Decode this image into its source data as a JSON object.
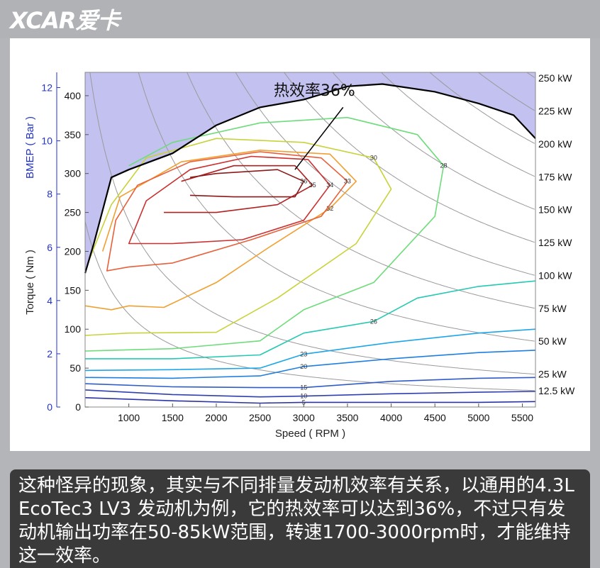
{
  "logo_text": "XCAR爱卡",
  "caption_text": "这种怪异的现象，其实与不同排量发动机效率有关系，以通用的4.3L EcoTec3 LV3 发动机为例，它的热效率可以达到36%，不过只有发动机输出功率在50-85kW范围，转速1700-3000rpm时，才能维持这一效率。",
  "chart_data": {
    "type": "contour",
    "xlabel": "Speed ( RPM )",
    "ylabel": "Torque ( Nm )",
    "y2label": "BMEP ( Bar )",
    "xlim": [
      500,
      5650
    ],
    "ylim": [
      0,
      430
    ],
    "x_ticks": [
      1000,
      1500,
      2000,
      2500,
      3000,
      3500,
      4000,
      4500,
      5000,
      5500
    ],
    "y_ticks": [
      0,
      50,
      100,
      150,
      200,
      250,
      300,
      350,
      400
    ],
    "bmep_ticks": [
      0,
      2,
      4,
      6,
      8,
      10,
      12
    ],
    "bmep_per_nm": 0.02924,
    "annotation": {
      "text": "热效率36%",
      "x": 2900,
      "y": 305
    },
    "power_lines_kw": [
      {
        "label": "12.5 kW",
        "kw": 12.5
      },
      {
        "label": "25 kW",
        "kw": 25
      },
      {
        "label": "50 kW",
        "kw": 50
      },
      {
        "label": "75 kW",
        "kw": 75
      },
      {
        "label": "100 kW",
        "kw": 100
      },
      {
        "label": "125 kW",
        "kw": 125
      },
      {
        "label": "150 kW",
        "kw": 150
      },
      {
        "label": "175 kW",
        "kw": 175
      },
      {
        "label": "200 kW",
        "kw": 200
      },
      {
        "label": "225 kW",
        "kw": 225
      },
      {
        "label": "250 kW",
        "kw": 250
      }
    ],
    "max_torque_curve": [
      [
        500,
        172
      ],
      [
        600,
        210
      ],
      [
        800,
        295
      ],
      [
        1000,
        305
      ],
      [
        1500,
        326
      ],
      [
        2000,
        362
      ],
      [
        2500,
        385
      ],
      [
        3000,
        395
      ],
      [
        3500,
        412
      ],
      [
        3900,
        415
      ],
      [
        4500,
        405
      ],
      [
        5000,
        390
      ],
      [
        5400,
        375
      ],
      [
        5650,
        345
      ]
    ],
    "contours": [
      {
        "level": "5",
        "color": "#2d33a3",
        "points": [
          [
            500,
            12
          ],
          [
            1500,
            8
          ],
          [
            2500,
            5
          ],
          [
            3000,
            6
          ],
          [
            4000,
            6
          ],
          [
            5000,
            6
          ],
          [
            5650,
            7
          ]
        ]
      },
      {
        "level": "10",
        "color": "#2f3fb0",
        "points": [
          [
            500,
            22
          ],
          [
            1500,
            16
          ],
          [
            2500,
            13
          ],
          [
            3000,
            14
          ],
          [
            4000,
            17
          ],
          [
            5000,
            19
          ],
          [
            5650,
            20
          ]
        ]
      },
      {
        "level": "15",
        "color": "#2f5cc8",
        "points": [
          [
            500,
            30
          ],
          [
            1500,
            26
          ],
          [
            2500,
            25
          ],
          [
            3000,
            25
          ],
          [
            4000,
            33
          ],
          [
            5000,
            37
          ],
          [
            5650,
            38
          ]
        ]
      },
      {
        "level": "20",
        "color": "#1f7fe0",
        "points": [
          [
            500,
            38
          ],
          [
            1500,
            37
          ],
          [
            2500,
            40
          ],
          [
            3000,
            52
          ],
          [
            4000,
            62
          ],
          [
            5000,
            70
          ],
          [
            5650,
            73
          ]
        ]
      },
      {
        "level": "23",
        "color": "#1ca6e8",
        "points": [
          [
            500,
            47
          ],
          [
            1500,
            48
          ],
          [
            2500,
            50
          ],
          [
            3000,
            68
          ],
          [
            4000,
            83
          ],
          [
            5000,
            95
          ],
          [
            5650,
            100
          ]
        ]
      },
      {
        "level": "26",
        "color": "#25c9b3",
        "points": [
          [
            500,
            62
          ],
          [
            1500,
            62
          ],
          [
            2500,
            67
          ],
          [
            3000,
            95
          ],
          [
            3800,
            110
          ],
          [
            4300,
            140
          ],
          [
            5000,
            155
          ],
          [
            5650,
            162
          ]
        ]
      },
      {
        "level": "28",
        "color": "#6edc7a",
        "points": [
          [
            500,
            72
          ],
          [
            1500,
            75
          ],
          [
            2500,
            85
          ],
          [
            3000,
            125
          ],
          [
            3800,
            160
          ],
          [
            4500,
            245
          ],
          [
            4600,
            310
          ],
          [
            4300,
            350
          ],
          [
            3500,
            372
          ],
          [
            2500,
            365
          ],
          [
            1500,
            340
          ],
          [
            1000,
            310
          ]
        ]
      },
      {
        "level": "30",
        "color": "#c9d23a",
        "points": [
          [
            500,
            92
          ],
          [
            1000,
            95
          ],
          [
            2000,
            96
          ],
          [
            2700,
            140
          ],
          [
            3600,
            210
          ],
          [
            4000,
            280
          ],
          [
            3800,
            320
          ],
          [
            3000,
            340
          ],
          [
            2000,
            345
          ],
          [
            1200,
            320
          ],
          [
            800,
            260
          ],
          [
            550,
            190
          ]
        ]
      },
      {
        "level": "32",
        "color": "#f0a030",
        "points": [
          [
            500,
            130
          ],
          [
            800,
            125
          ],
          [
            1000,
            130
          ],
          [
            1400,
            128
          ],
          [
            2000,
            160
          ],
          [
            2600,
            205
          ],
          [
            3300,
            255
          ],
          [
            3600,
            290
          ],
          [
            3300,
            325
          ],
          [
            2500,
            330
          ],
          [
            1600,
            315
          ],
          [
            900,
            270
          ],
          [
            700,
            200
          ]
        ]
      },
      {
        "level": "33",
        "color": "#e8603a",
        "points": [
          [
            750,
            175
          ],
          [
            1000,
            180
          ],
          [
            1500,
            185
          ],
          [
            2400,
            215
          ],
          [
            3200,
            245
          ],
          [
            3500,
            290
          ],
          [
            3200,
            320
          ],
          [
            2500,
            328
          ],
          [
            1700,
            315
          ],
          [
            1100,
            285
          ],
          [
            850,
            240
          ]
        ]
      },
      {
        "level": "34",
        "color": "#cc3030",
        "points": [
          [
            1000,
            210
          ],
          [
            1500,
            210
          ],
          [
            2300,
            215
          ],
          [
            3000,
            240
          ],
          [
            3300,
            285
          ],
          [
            3050,
            318
          ],
          [
            2400,
            322
          ],
          [
            1700,
            305
          ],
          [
            1200,
            265
          ]
        ]
      },
      {
        "level": "35",
        "color": "#b02222",
        "points": [
          [
            1400,
            250
          ],
          [
            2000,
            250
          ],
          [
            2700,
            260
          ],
          [
            3100,
            285
          ],
          [
            2900,
            310
          ],
          [
            2200,
            310
          ],
          [
            1600,
            290
          ]
        ]
      },
      {
        "level": "36",
        "color": "#8a1a1a",
        "points": [
          [
            1700,
            272
          ],
          [
            2200,
            270
          ],
          [
            2900,
            270
          ],
          [
            3000,
            290
          ],
          [
            2700,
            305
          ],
          [
            2000,
            300
          ],
          [
            1700,
            295
          ]
        ]
      }
    ]
  }
}
